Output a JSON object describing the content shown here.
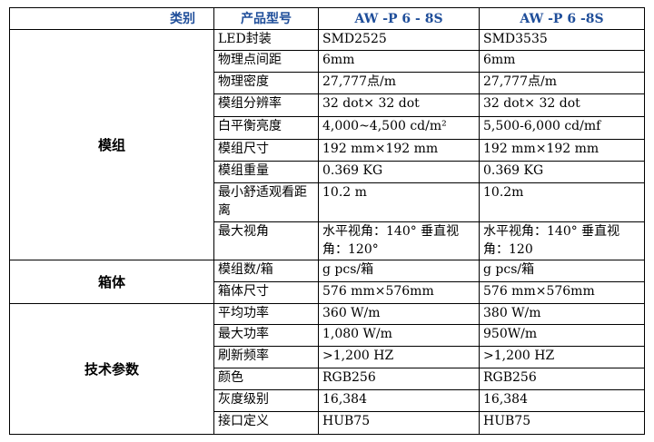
{
  "header": {
    "category": "类别",
    "model_label": "产品型号",
    "model_a": "AW -P 6 - 8S",
    "model_b": "AW -P 6 -8S"
  },
  "groups": [
    {
      "name": "模组",
      "rows": [
        {
          "label": "LED封装",
          "a": "SMD2525",
          "b": "SMD3535"
        },
        {
          "label": "物理点间距",
          "a": "6mm",
          "b": "6mm"
        },
        {
          "label": "物理密度",
          "a": "27,777点/m",
          "b": "27,777点/m"
        },
        {
          "label": "模组分辨率",
          "a": "32 dot× 32 dot",
          "b": "32 dot× 32 dot"
        },
        {
          "label": "白平衡亮度",
          "a": "4,000~4,500   cd/m²",
          "b": "5,500-6,000 cd/mf"
        },
        {
          "label": "模组尺寸",
          "a": "192 mm×192 mm",
          "b": "192 mm×192 mm"
        },
        {
          "label": "模组重量",
          "a": "0.369 KG",
          "b": "0.369 KG"
        },
        {
          "label": "最小舒适观看距离",
          "a": "10.2 m",
          "b": "10.2m"
        },
        {
          "label": "最大视角",
          "a": "水平视角：140° 垂直视角：120°",
          "b": "水平视角：140° 垂直视角：120"
        }
      ]
    },
    {
      "name": "箱体",
      "rows": [
        {
          "label": "模组数/箱",
          "a": "g pcs/箱",
          "b": "g pcs/箱"
        },
        {
          "label": "箱体尺寸",
          "a": "576 mm×576mm",
          "b": "576 mm×576mm"
        }
      ]
    },
    {
      "name": "技术参数",
      "rows": [
        {
          "label": "平均功率",
          "a": "360 W/m",
          "b": "380 W/m"
        },
        {
          "label": "最大功率",
          "a": "1,080 W/m",
          "b": "950W/m"
        },
        {
          "label": "刷新频率",
          "a": ">1,200 HZ",
          "b": ">1,200 HZ"
        },
        {
          "label": "颜色",
          "a": "RGB256",
          "b": "RGB256"
        },
        {
          "label": "灰度级别",
          "a": "16,384",
          "b": "16,384"
        },
        {
          "label": "接口定义",
          "a": "HUB75",
          "b": "HUB75"
        }
      ]
    }
  ]
}
